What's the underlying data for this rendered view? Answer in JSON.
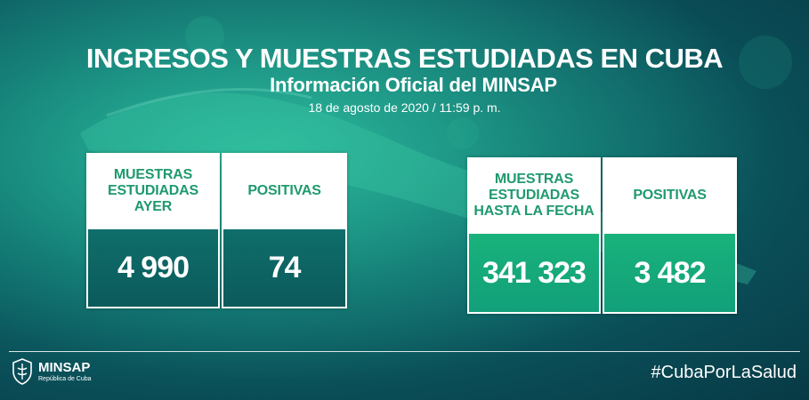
{
  "header": {
    "title": "INGRESOS Y MUESTRAS ESTUDIADAS EN CUBA",
    "subtitle": "Información Oficial del MINSAP",
    "date": "18 de agosto de 2020 / 11:59 p. m."
  },
  "cards": [
    {
      "label": "MUESTRAS\nESTUDIADAS\nAYER",
      "value": "4 990"
    },
    {
      "label": "POSITIVAS",
      "value": "74"
    },
    {
      "label": "MUESTRAS\nESTUDIADAS\nHASTA LA FECHA",
      "value": "341 323"
    },
    {
      "label": "POSITIVAS",
      "value": "3 482"
    }
  ],
  "footer": {
    "logo_name": "MINSAP",
    "logo_sub": "República de Cuba",
    "logo_icon": "shield-emblem-icon",
    "hashtag": "#CubaPorLaSalud"
  },
  "colors": {
    "accent_green": "#1f9a6e",
    "background": "#0d6e6c"
  }
}
